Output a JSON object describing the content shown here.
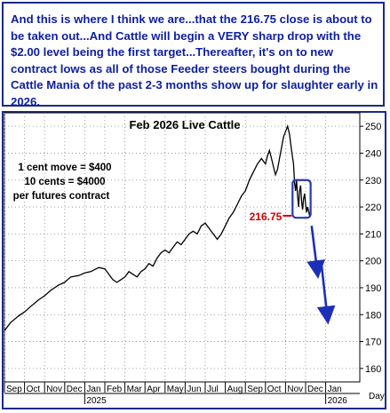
{
  "commentary": "And this is where I think we are...that the 216.75 close is about to be taken out...And Cattle will begin a VERY sharp drop with the $2.00 level being the first target...Thereafter, it's on to new contract lows as all of those Feeder steers bought during the Cattle Mania of the past 2-3 months show up for slaughter early in 2026.",
  "colors": {
    "text_blue": "#1020a0",
    "frame": "#1a2a8c",
    "price_line": "#000000",
    "highlight_box": "#2838b0",
    "marker_red": "#d00000",
    "arrow_blue": "#1c2fb8"
  },
  "chart_data": {
    "type": "line",
    "title": "Feb 2026 Live Cattle",
    "notes": [
      "1 cent move = $400",
      "10 cents = $4000",
      "per futures contract"
    ],
    "annotation_level_label": "216.75",
    "annotation_level_value": 216.75,
    "xlabel": "",
    "ylabel": "",
    "ylim": [
      155,
      255
    ],
    "yticks": [
      160,
      170,
      180,
      190,
      200,
      210,
      220,
      230,
      240,
      250
    ],
    "month_labels": [
      "Sep",
      "Oct",
      "Nov",
      "Dec",
      "Jan",
      "Feb",
      "Mar",
      "Apr",
      "May",
      "Jun",
      "Jul",
      "Aug",
      "Sep",
      "Oct",
      "Nov",
      "Dec",
      "Jan"
    ],
    "year_labels": [
      {
        "text": "2025",
        "month_index": 4
      },
      {
        "text": "2026",
        "month_index": 16
      }
    ],
    "day_label": "Day",
    "series": [
      {
        "values": [
          [
            0,
            174
          ],
          [
            0.3,
            177
          ],
          [
            0.7,
            179.5
          ],
          [
            1.0,
            181
          ],
          [
            1.3,
            183
          ],
          [
            1.7,
            185.5
          ],
          [
            2.0,
            187
          ],
          [
            2.3,
            189
          ],
          [
            2.7,
            191
          ],
          [
            3.0,
            192
          ],
          [
            3.3,
            194
          ],
          [
            3.7,
            194.5
          ],
          [
            4.0,
            195.5
          ],
          [
            4.3,
            196
          ],
          [
            4.7,
            197.5
          ],
          [
            5.0,
            197
          ],
          [
            5.2,
            195
          ],
          [
            5.4,
            193
          ],
          [
            5.6,
            192
          ],
          [
            5.8,
            193
          ],
          [
            6.0,
            194
          ],
          [
            6.2,
            196
          ],
          [
            6.4,
            195
          ],
          [
            6.6,
            194
          ],
          [
            6.8,
            196
          ],
          [
            7.0,
            197
          ],
          [
            7.2,
            199
          ],
          [
            7.4,
            198
          ],
          [
            7.6,
            201
          ],
          [
            7.8,
            203
          ],
          [
            8.0,
            204
          ],
          [
            8.2,
            203
          ],
          [
            8.4,
            205
          ],
          [
            8.6,
            207
          ],
          [
            8.8,
            206
          ],
          [
            9.0,
            208
          ],
          [
            9.2,
            210
          ],
          [
            9.4,
            211
          ],
          [
            9.6,
            210
          ],
          [
            9.8,
            213
          ],
          [
            10.0,
            214
          ],
          [
            10.2,
            212
          ],
          [
            10.4,
            210
          ],
          [
            10.6,
            208
          ],
          [
            10.8,
            210
          ],
          [
            11.0,
            213
          ],
          [
            11.2,
            216
          ],
          [
            11.4,
            218
          ],
          [
            11.6,
            221
          ],
          [
            11.8,
            224
          ],
          [
            12.0,
            226
          ],
          [
            12.2,
            230
          ],
          [
            12.4,
            233
          ],
          [
            12.6,
            236
          ],
          [
            12.8,
            238
          ],
          [
            13.0,
            236
          ],
          [
            13.1,
            239
          ],
          [
            13.2,
            241
          ],
          [
            13.3,
            238
          ],
          [
            13.4,
            235
          ],
          [
            13.5,
            232
          ],
          [
            13.6,
            234
          ],
          [
            13.7,
            238
          ],
          [
            13.8,
            242
          ],
          [
            13.9,
            246
          ],
          [
            14.0,
            248
          ],
          [
            14.1,
            250
          ],
          [
            14.2,
            247
          ],
          [
            14.3,
            241
          ],
          [
            14.4,
            236
          ],
          [
            14.45,
            229
          ],
          [
            14.5,
            226
          ],
          [
            14.55,
            230
          ],
          [
            14.6,
            224
          ],
          [
            14.65,
            220
          ],
          [
            14.7,
            226
          ],
          [
            14.75,
            228
          ],
          [
            14.8,
            222
          ],
          [
            14.85,
            219
          ],
          [
            14.9,
            223
          ],
          [
            14.95,
            225
          ],
          [
            15.0,
            221
          ],
          [
            15.05,
            218
          ],
          [
            15.1,
            220
          ],
          [
            15.15,
            218.5
          ],
          [
            15.2,
            216.75
          ]
        ]
      }
    ],
    "forecast_arrows": [
      {
        "from": [
          15.3,
          213
        ],
        "to": [
          15.6,
          195
        ]
      },
      {
        "from": [
          15.8,
          198
        ],
        "to": [
          16.1,
          178
        ]
      }
    ],
    "highlight_box": {
      "x": [
        14.35,
        15.25
      ],
      "y": [
        216,
        230
      ]
    }
  }
}
